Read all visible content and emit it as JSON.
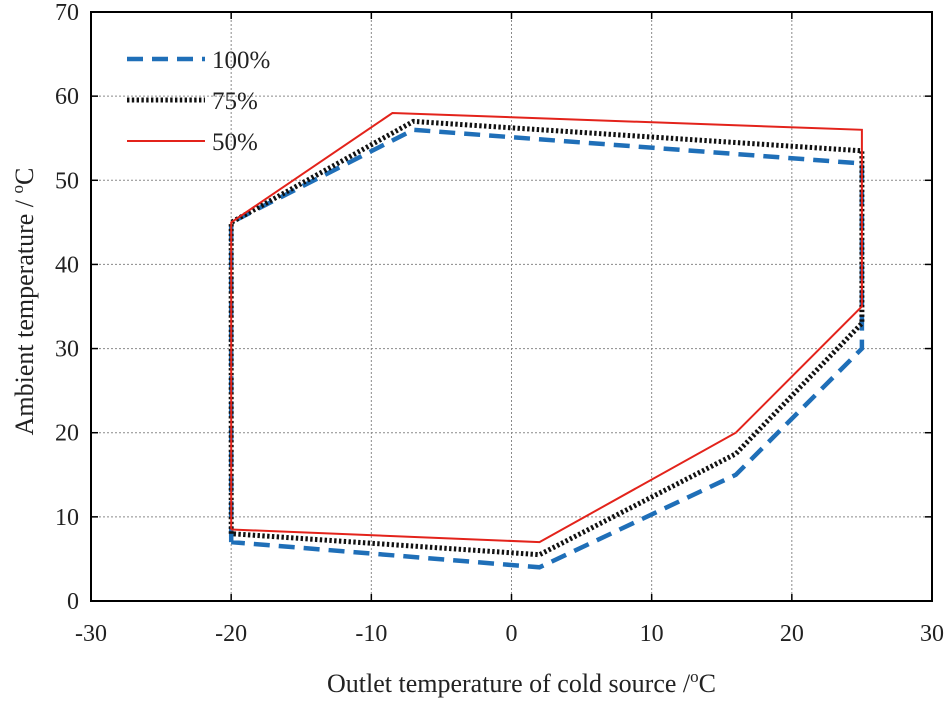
{
  "chart_data": {
    "type": "line",
    "title": "",
    "xlabel": "Outlet temperature of cold source",
    "xlabel_unit": "°C",
    "ylabel": "Ambient temperature /",
    "ylabel_unit": "°C",
    "xlim": [
      -30,
      30
    ],
    "ylim": [
      0,
      70
    ],
    "x_ticks": [
      -30,
      -20,
      -10,
      0,
      10,
      20,
      30
    ],
    "y_ticks": [
      0,
      10,
      20,
      30,
      40,
      50,
      60,
      70
    ],
    "x_tick_labels": [
      "-30",
      "-20",
      "-10",
      "0",
      "10",
      "20",
      "30"
    ],
    "y_tick_labels": [
      "0",
      "10",
      "20",
      "30",
      "40",
      "50",
      "60",
      "70"
    ],
    "grid": true,
    "legend_position": "top-left",
    "series": [
      {
        "name": "100%",
        "color": "#1f6fb8",
        "style": "dashed",
        "points": [
          [
            -20,
            7
          ],
          [
            -20,
            45
          ],
          [
            -7,
            56
          ],
          [
            25,
            52
          ],
          [
            25,
            30
          ],
          [
            16,
            15
          ],
          [
            2,
            4
          ],
          [
            -20,
            7
          ]
        ]
      },
      {
        "name": "75%",
        "color": "#111111",
        "style": "dotted",
        "points": [
          [
            -20,
            8
          ],
          [
            -20,
            45
          ],
          [
            -7,
            57
          ],
          [
            25,
            53.5
          ],
          [
            25,
            33
          ],
          [
            16,
            17.5
          ],
          [
            2,
            5.5
          ],
          [
            -20,
            8
          ]
        ]
      },
      {
        "name": "50%",
        "color": "#e3231b",
        "style": "solid",
        "points": [
          [
            -20,
            8.5
          ],
          [
            -20,
            45
          ],
          [
            -8.5,
            58
          ],
          [
            25,
            56
          ],
          [
            25,
            35
          ],
          [
            16,
            20
          ],
          [
            2,
            7
          ],
          [
            -20,
            8.5
          ]
        ]
      }
    ]
  }
}
